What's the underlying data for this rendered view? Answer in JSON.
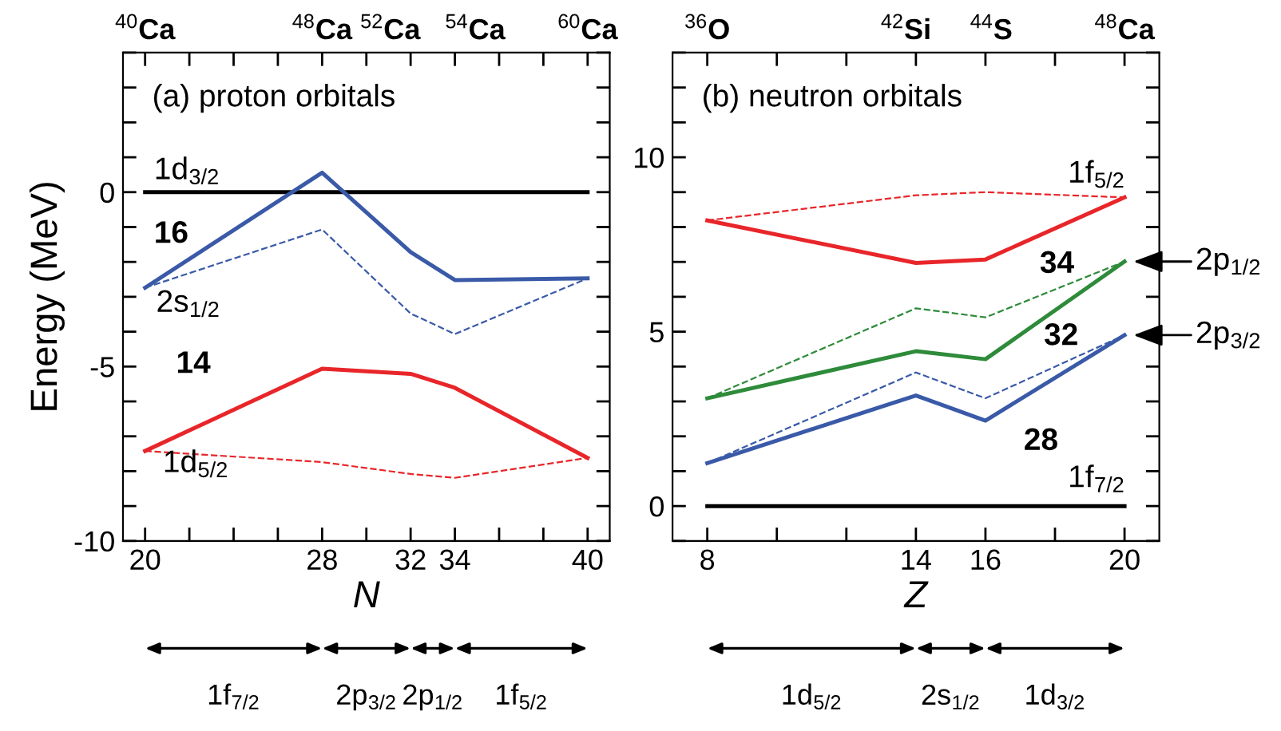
{
  "chart_data": [
    {
      "type": "line",
      "title": "(a) proton orbitals",
      "xlabel": "N",
      "ylabel": "Energy (MeV)",
      "x": [
        20,
        28,
        32,
        34,
        40
      ],
      "series": [
        {
          "color": "#000000",
          "line_style": "solid",
          "x": [
            20,
            40
          ],
          "values": [
            0,
            0
          ]
        },
        {
          "color": "#3a5aa8",
          "line_style": "solid",
          "values": [
            -2.74,
            0.56,
            -1.72,
            -2.52,
            -2.47
          ]
        },
        {
          "color": "#3a5aa8",
          "line_style": "dashed",
          "values": [
            -2.74,
            -1.07,
            -3.48,
            -4.07,
            -2.47
          ]
        },
        {
          "color": "#e8262a",
          "line_style": "solid",
          "values": [
            -7.42,
            -5.06,
            -5.21,
            -5.61,
            -7.62
          ]
        },
        {
          "color": "#e8262a",
          "line_style": "dashed",
          "values": [
            -7.42,
            -7.74,
            -8.08,
            -8.19,
            -7.62
          ]
        }
      ],
      "xlim": [
        19,
        41
      ],
      "ylim": [
        -10,
        4
      ],
      "xticks": [
        20,
        {
          "value": 22,
          "label": null
        },
        {
          "value": 24,
          "label": null
        },
        {
          "value": 26,
          "label": null
        },
        28,
        {
          "value": 30,
          "label": null
        },
        32,
        34,
        {
          "value": 36,
          "label": null
        },
        {
          "value": 38,
          "label": null
        },
        40
      ],
      "yticks": [
        -10,
        {
          "value": -9,
          "label": null
        },
        {
          "value": -8,
          "label": null
        },
        {
          "value": -7,
          "label": null
        },
        {
          "value": -6,
          "label": null
        },
        -5,
        {
          "value": -4,
          "label": null
        },
        {
          "value": -3,
          "label": null
        },
        {
          "value": -2,
          "label": null
        },
        {
          "value": -1,
          "label": null
        },
        0,
        {
          "value": 1,
          "label": null
        },
        {
          "value": 2,
          "label": null
        },
        {
          "value": 3,
          "label": null
        },
        {
          "value": 4,
          "label": null
        }
      ],
      "annotations": [
        "$^{40}$Ca",
        "$^{48}$Ca",
        "$^{52}$Ca",
        "$^{54}$Ca",
        "$^{60}$Ca",
        "1f$_{7/2}$",
        "2p$_{3/2}$",
        "2p$_{1/2}$",
        "1f$_{5/2}$",
        "1d$_{3/2}$",
        "16",
        "2s$_{1/2}$",
        "14",
        "1d$_{5/2}$"
      ],
      "grid": false,
      "legend": false,
      "marker": "none"
    },
    {
      "type": "line",
      "title": "(b) neutron orbitals",
      "xlabel": "Z",
      "x": [
        8,
        14,
        16,
        20
      ],
      "series": [
        {
          "color": "#000000",
          "line_style": "solid",
          "x": [
            8,
            20
          ],
          "values": [
            0,
            0
          ]
        },
        {
          "color": "#e8262a",
          "line_style": "solid",
          "values": [
            8.19,
            6.97,
            7.07,
            8.85
          ]
        },
        {
          "color": "#e8262a",
          "line_style": "dashed",
          "values": [
            8.19,
            8.91,
            9.0,
            8.85
          ]
        },
        {
          "color": "#2e8b3a",
          "line_style": "solid",
          "values": [
            3.09,
            4.44,
            4.21,
            7.01
          ]
        },
        {
          "color": "#2e8b3a",
          "line_style": "dashed",
          "values": [
            3.09,
            5.67,
            5.41,
            7.01
          ]
        },
        {
          "color": "#3a5aa8",
          "line_style": "solid",
          "values": [
            1.23,
            3.17,
            2.45,
            4.9
          ]
        },
        {
          "color": "#3a5aa8",
          "line_style": "dashed",
          "values": [
            1.23,
            3.83,
            3.09,
            4.9
          ]
        }
      ],
      "xlim": [
        7,
        21
      ],
      "ylim": [
        -1,
        13
      ],
      "xticks": [
        8,
        {
          "value": 10,
          "label": null
        },
        {
          "value": 12,
          "label": null
        },
        14,
        16,
        {
          "value": 18,
          "label": null
        },
        20
      ],
      "yticks": [
        {
          "value": -1,
          "label": null
        },
        0,
        {
          "value": 1,
          "label": null
        },
        {
          "value": 2,
          "label": null
        },
        {
          "value": 3,
          "label": null
        },
        {
          "value": 4,
          "label": null
        },
        5,
        {
          "value": 6,
          "label": null
        },
        {
          "value": 7,
          "label": null
        },
        {
          "value": 8,
          "label": null
        },
        {
          "value": 9,
          "label": null
        },
        10,
        {
          "value": 11,
          "label": null
        },
        {
          "value": 12,
          "label": null
        },
        {
          "value": 13,
          "label": null
        }
      ],
      "annotations": [
        "$^{36}$O",
        "$^{42}$Si",
        "$^{44}$S",
        "$^{48}$Ca",
        "1d$_{5/2}$",
        "2s$_{1/2}$",
        "1d$_{3/2}$",
        "1f$_{5/2}$",
        "34",
        "32",
        "28",
        "1f$_{7/2}$",
        {
          "text": "2p$_{1/2}$",
          "x": 20,
          "y": 7.01
        },
        {
          "text": "2p$_{3/2}$",
          "x": 20,
          "y": 4.9
        }
      ],
      "grid": false,
      "legend": false,
      "marker": "none"
    }
  ]
}
